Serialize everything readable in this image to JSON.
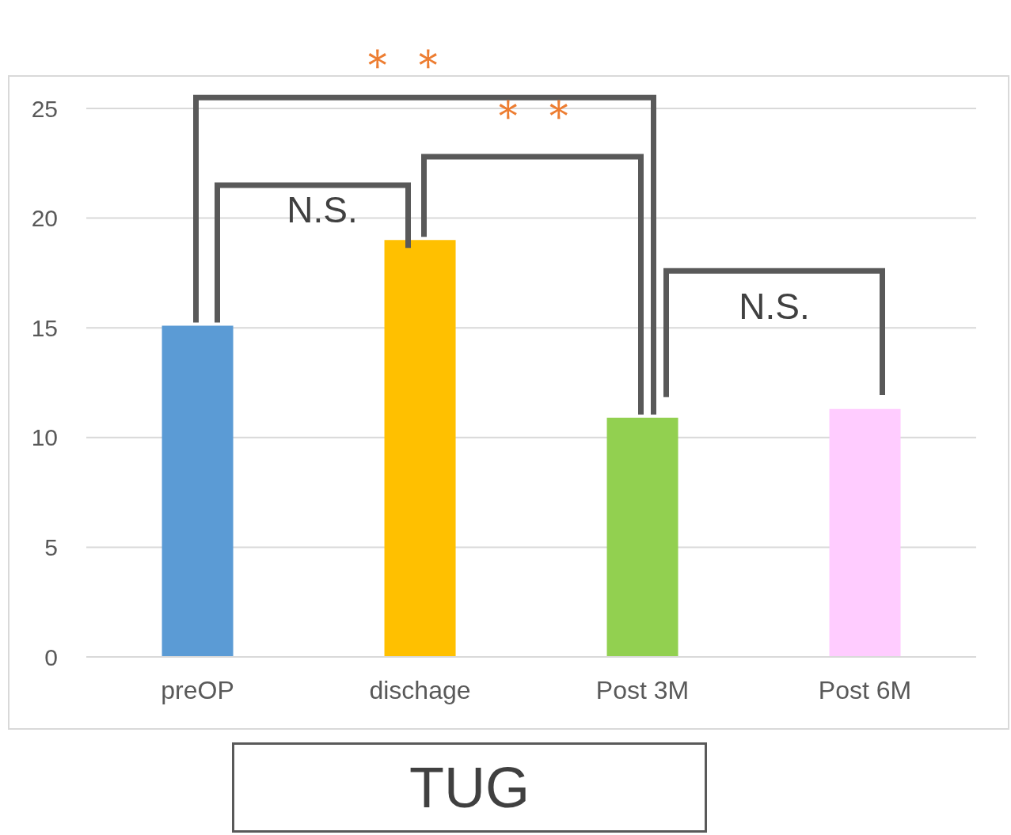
{
  "chart_data": {
    "type": "bar",
    "title": "TUG",
    "categories": [
      "preOP",
      "dischage",
      "Post 3M",
      "Post 6M"
    ],
    "values": [
      15.1,
      19.0,
      10.9,
      11.3
    ],
    "colors": [
      "#5b9bd5",
      "#ffc000",
      "#92d050",
      "#ffccff"
    ],
    "ylim": [
      0,
      25
    ],
    "yticks": [
      0,
      5,
      10,
      15,
      20,
      25
    ],
    "grid": "y",
    "legend": false,
    "annotations": [
      "＊＊",
      "＊＊",
      "N.S.",
      "N.S."
    ]
  }
}
